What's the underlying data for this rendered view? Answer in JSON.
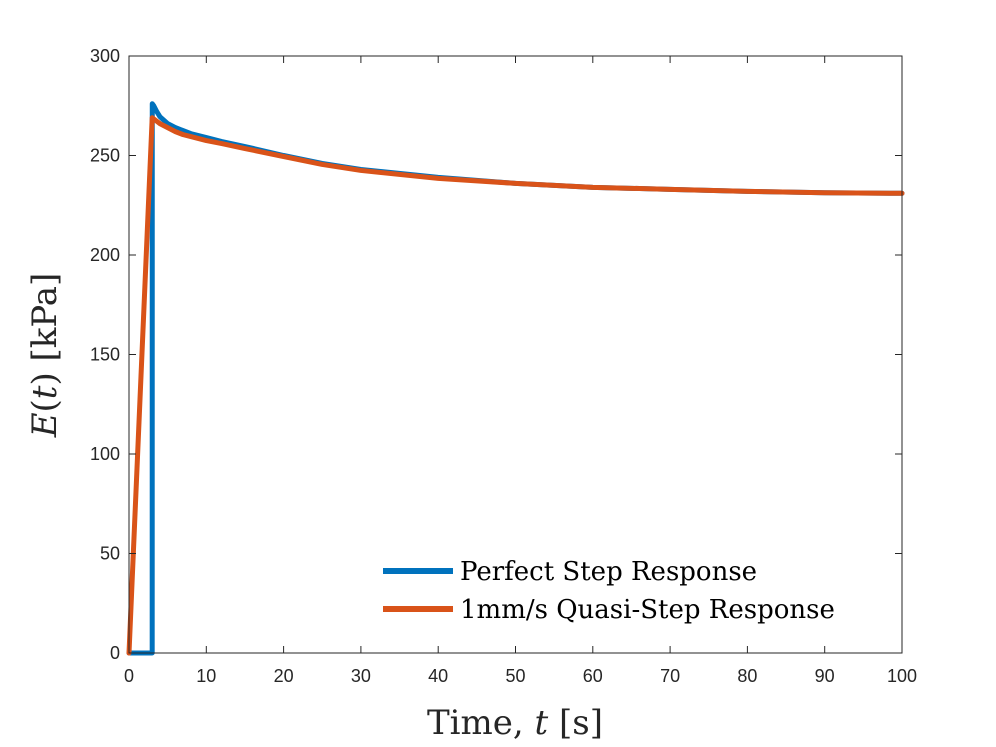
{
  "chart_data": {
    "type": "line",
    "xlabel": {
      "pre": "Time, ",
      "var": "t",
      "post": " [s]"
    },
    "ylabel": {
      "var_e": "E",
      "open": "(",
      "var_t": "t",
      "close": ")",
      "post": " [kPa]"
    },
    "xlim": [
      0,
      100
    ],
    "ylim": [
      0,
      300
    ],
    "xticks": [
      0,
      10,
      20,
      30,
      40,
      50,
      60,
      70,
      80,
      90,
      100
    ],
    "yticks": [
      0,
      50,
      100,
      150,
      200,
      250,
      300
    ],
    "grid": false,
    "legend_position": "bottom-right",
    "series": [
      {
        "name": "Perfect Step Response",
        "color": "#0072BD",
        "x": [
          0,
          3,
          3.01,
          3.2,
          3.6,
          4,
          5,
          6,
          7,
          8,
          10,
          12,
          15,
          20,
          25,
          30,
          40,
          50,
          60,
          70,
          80,
          90,
          100
        ],
        "y": [
          0,
          0,
          276,
          275,
          272,
          269.5,
          266,
          264,
          262.5,
          261,
          259,
          257,
          254.5,
          250,
          246,
          243,
          239,
          236,
          234,
          233,
          232,
          231.3,
          231
        ]
      },
      {
        "name": "1mm/s Quasi-Step Response",
        "color": "#D95319",
        "x": [
          0,
          3,
          3.5,
          4,
          5,
          6,
          7,
          8,
          10,
          12,
          15,
          20,
          25,
          30,
          40,
          50,
          60,
          70,
          80,
          90,
          100
        ],
        "y": [
          0,
          269,
          267.5,
          266,
          264,
          262,
          260.5,
          259.5,
          257.5,
          256,
          253.5,
          249.5,
          245.5,
          242.5,
          238.5,
          236,
          234,
          233,
          232,
          231.3,
          231
        ]
      }
    ]
  }
}
